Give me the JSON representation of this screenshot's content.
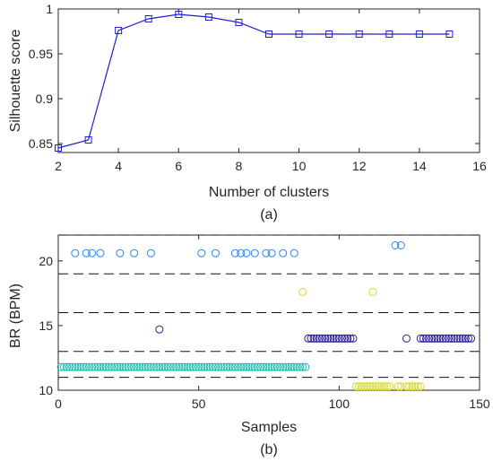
{
  "chart_data": [
    {
      "type": "line",
      "caption": "(a)",
      "xlabel": "Number of clusters",
      "ylabel": "Silhouette score",
      "xlim": [
        2,
        16
      ],
      "ylim": [
        0.84,
        1.0
      ],
      "xticks": [
        "2",
        "4",
        "6",
        "8",
        "10",
        "12",
        "14",
        "16"
      ],
      "yticks": [
        "0.85",
        "0.9",
        "0.95",
        "1"
      ],
      "grid": false,
      "marker": "square",
      "color": "#1f1fcf",
      "x": [
        2,
        3,
        4,
        5,
        6,
        7,
        8,
        9,
        10,
        11,
        12,
        13,
        14,
        15
      ],
      "y": [
        0.845,
        0.854,
        0.976,
        0.989,
        0.994,
        0.991,
        0.985,
        0.972,
        0.972,
        0.972,
        0.972,
        0.972,
        0.972,
        0.972
      ]
    },
    {
      "type": "scatter",
      "caption": "(b)",
      "xlabel": "Samples",
      "ylabel": "BR (BPM)",
      "xlim": [
        0,
        150
      ],
      "ylim": [
        10,
        22
      ],
      "xticks": [
        "0",
        "50",
        "100",
        "150"
      ],
      "yticks": [
        "10",
        "15",
        "20"
      ],
      "marker": "circle",
      "dashed_lines": [
        11,
        13,
        16,
        19,
        22
      ],
      "series": [
        {
          "color": "#1bbcb0",
          "points": [
            [
              1,
              11.8
            ],
            [
              2,
              11.8
            ],
            [
              3,
              11.8
            ],
            [
              4,
              11.8
            ],
            [
              5,
              11.8
            ],
            [
              6,
              11.8
            ],
            [
              7,
              11.8
            ],
            [
              8,
              11.8
            ],
            [
              9,
              11.8
            ],
            [
              10,
              11.8
            ],
            [
              11,
              11.8
            ],
            [
              12,
              11.8
            ],
            [
              13,
              11.8
            ],
            [
              14,
              11.8
            ],
            [
              15,
              11.8
            ],
            [
              16,
              11.8
            ],
            [
              17,
              11.8
            ],
            [
              18,
              11.8
            ],
            [
              19,
              11.8
            ],
            [
              20,
              11.8
            ],
            [
              21,
              11.8
            ],
            [
              22,
              11.8
            ],
            [
              23,
              11.8
            ],
            [
              24,
              11.8
            ],
            [
              25,
              11.8
            ],
            [
              26,
              11.8
            ],
            [
              27,
              11.8
            ],
            [
              28,
              11.8
            ],
            [
              29,
              11.8
            ],
            [
              30,
              11.8
            ],
            [
              31,
              11.8
            ],
            [
              32,
              11.8
            ],
            [
              33,
              11.8
            ],
            [
              34,
              11.8
            ],
            [
              35,
              11.8
            ],
            [
              36,
              11.8
            ],
            [
              37,
              11.8
            ],
            [
              38,
              11.8
            ],
            [
              39,
              11.8
            ],
            [
              40,
              11.8
            ],
            [
              41,
              11.8
            ],
            [
              42,
              11.8
            ],
            [
              43,
              11.8
            ],
            [
              44,
              11.8
            ],
            [
              45,
              11.8
            ],
            [
              46,
              11.8
            ],
            [
              47,
              11.8
            ],
            [
              48,
              11.8
            ],
            [
              49,
              11.8
            ],
            [
              50,
              11.8
            ],
            [
              51,
              11.8
            ],
            [
              52,
              11.8
            ],
            [
              53,
              11.8
            ],
            [
              54,
              11.8
            ],
            [
              55,
              11.8
            ],
            [
              56,
              11.8
            ],
            [
              57,
              11.8
            ],
            [
              58,
              11.8
            ],
            [
              59,
              11.8
            ],
            [
              60,
              11.8
            ],
            [
              61,
              11.8
            ],
            [
              62,
              11.8
            ],
            [
              63,
              11.8
            ],
            [
              64,
              11.8
            ],
            [
              65,
              11.8
            ],
            [
              66,
              11.8
            ],
            [
              67,
              11.8
            ],
            [
              68,
              11.8
            ],
            [
              69,
              11.8
            ],
            [
              70,
              11.8
            ],
            [
              71,
              11.8
            ],
            [
              72,
              11.8
            ],
            [
              73,
              11.8
            ],
            [
              74,
              11.8
            ],
            [
              75,
              11.8
            ],
            [
              76,
              11.8
            ],
            [
              77,
              11.8
            ],
            [
              78,
              11.8
            ],
            [
              79,
              11.8
            ],
            [
              80,
              11.8
            ],
            [
              81,
              11.8
            ],
            [
              82,
              11.8
            ],
            [
              83,
              11.8
            ],
            [
              84,
              11.8
            ],
            [
              85,
              11.8
            ],
            [
              86,
              11.8
            ],
            [
              87,
              11.8
            ],
            [
              88,
              11.8
            ]
          ]
        },
        {
          "color": "#2e86e6",
          "points": [
            [
              6,
              20.6
            ],
            [
              10,
              20.6
            ],
            [
              12,
              20.6
            ],
            [
              15,
              20.6
            ],
            [
              22,
              20.6
            ],
            [
              27,
              20.6
            ],
            [
              33,
              20.6
            ],
            [
              51,
              20.6
            ],
            [
              56,
              20.6
            ],
            [
              63,
              20.6
            ],
            [
              65,
              20.6
            ],
            [
              67,
              20.6
            ],
            [
              70,
              20.6
            ],
            [
              74,
              20.6
            ],
            [
              76,
              20.6
            ],
            [
              80,
              20.6
            ],
            [
              84,
              20.6
            ],
            [
              120,
              21.2
            ],
            [
              122,
              21.2
            ]
          ]
        },
        {
          "color": "#2a1f9e",
          "points": [
            [
              36,
              14.7
            ],
            [
              89,
              14.0
            ],
            [
              90,
              14.0
            ],
            [
              91,
              14.0
            ],
            [
              92,
              14.0
            ],
            [
              93,
              14.0
            ],
            [
              94,
              14.0
            ],
            [
              95,
              14.0
            ],
            [
              96,
              14.0
            ],
            [
              97,
              14.0
            ],
            [
              98,
              14.0
            ],
            [
              99,
              14.0
            ],
            [
              100,
              14.0
            ],
            [
              101,
              14.0
            ],
            [
              102,
              14.0
            ],
            [
              103,
              14.0
            ],
            [
              104,
              14.0
            ],
            [
              105,
              14.0
            ],
            [
              124,
              14.0
            ],
            [
              129,
              14.0
            ],
            [
              130,
              14.0
            ],
            [
              131,
              14.0
            ],
            [
              132,
              14.0
            ],
            [
              133,
              14.0
            ],
            [
              134,
              14.0
            ],
            [
              135,
              14.0
            ],
            [
              136,
              14.0
            ],
            [
              137,
              14.0
            ],
            [
              138,
              14.0
            ],
            [
              139,
              14.0
            ],
            [
              140,
              14.0
            ],
            [
              141,
              14.0
            ],
            [
              142,
              14.0
            ],
            [
              143,
              14.0
            ],
            [
              144,
              14.0
            ],
            [
              145,
              14.0
            ],
            [
              146,
              14.0
            ],
            [
              147,
              14.0
            ]
          ]
        },
        {
          "color": "#d8d82a",
          "points": [
            [
              87,
              17.6
            ],
            [
              112,
              17.6
            ],
            [
              106,
              10.3
            ],
            [
              107,
              10.3
            ],
            [
              108,
              10.3
            ],
            [
              109,
              10.3
            ],
            [
              110,
              10.3
            ],
            [
              111,
              10.3
            ],
            [
              112,
              10.3
            ],
            [
              113,
              10.3
            ],
            [
              114,
              10.3
            ],
            [
              115,
              10.3
            ],
            [
              116,
              10.3
            ],
            [
              117,
              10.3
            ],
            [
              118,
              10.3
            ],
            [
              121,
              10.3
            ],
            [
              122,
              10.3
            ],
            [
              124,
              10.3
            ],
            [
              125,
              10.3
            ],
            [
              126,
              10.3
            ],
            [
              127,
              10.3
            ],
            [
              128,
              10.3
            ],
            [
              129,
              10.3
            ]
          ]
        }
      ]
    }
  ]
}
